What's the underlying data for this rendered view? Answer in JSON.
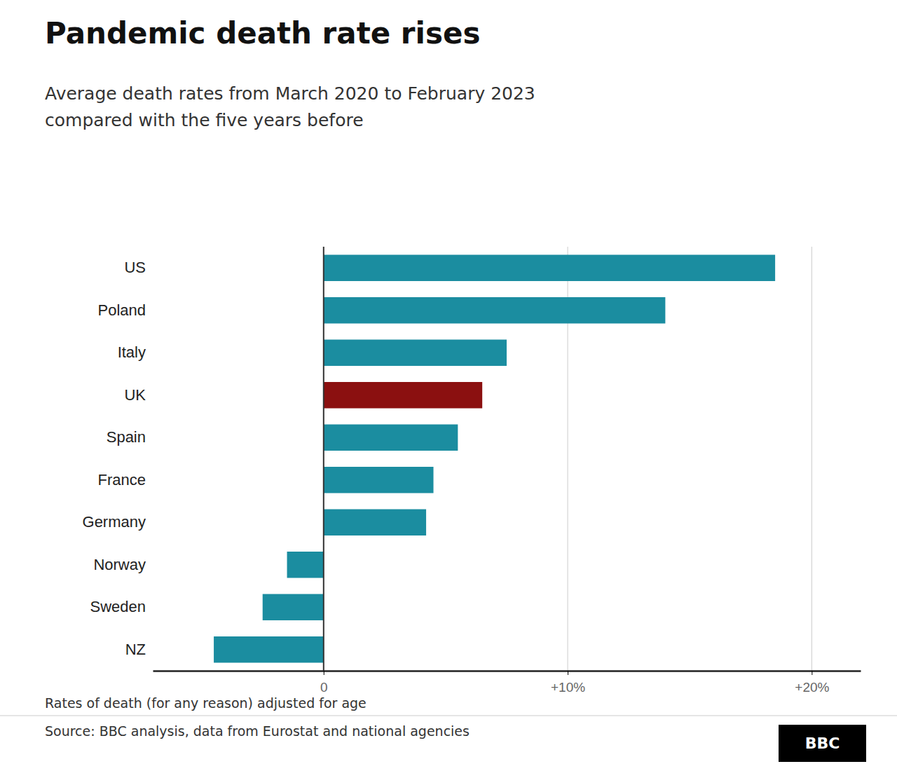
{
  "chart_data": {
    "type": "bar",
    "orientation": "horizontal",
    "title": "Pandemic death rate rises",
    "subtitle": "Average death rates from March 2020 to February 2023\ncompared with the five years before",
    "categories": [
      "US",
      "Poland",
      "Italy",
      "UK",
      "Spain",
      "France",
      "Germany",
      "Norway",
      "Sweden",
      "NZ"
    ],
    "values": [
      18.5,
      14.0,
      7.5,
      6.5,
      5.5,
      4.5,
      4.2,
      -1.5,
      -2.5,
      -4.5
    ],
    "colors": [
      "#1b8da0",
      "#1b8da0",
      "#1b8da0",
      "#8b1010",
      "#1b8da0",
      "#1b8da0",
      "#1b8da0",
      "#1b8da0",
      "#1b8da0",
      "#1b8da0"
    ],
    "xlim": [
      -7,
      22
    ],
    "xticks": [
      0,
      {
        "value": 10,
        "label": "+10%"
      },
      {
        "value": 20,
        "label": "+20%"
      }
    ],
    "xlabel": "Rates of death (for any reason) adjusted for age",
    "source": "Source: BBC analysis, data from Eurostat and national agencies",
    "annotations": [
      "BBC"
    ],
    "grid": true
  }
}
